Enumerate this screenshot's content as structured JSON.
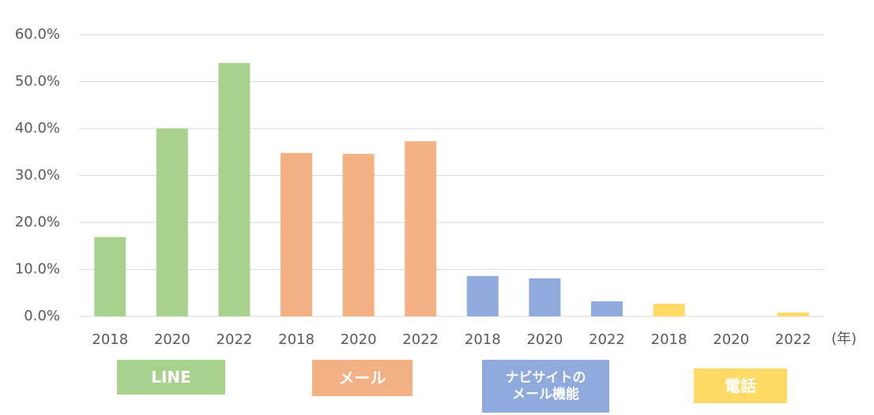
{
  "chart_data": {
    "type": "bar",
    "xlabel": "(年)",
    "ylim": [
      0,
      60
    ],
    "yticks": [
      {
        "value": 0,
        "label": "0.0%"
      },
      {
        "value": 10,
        "label": "10.0%"
      },
      {
        "value": 20,
        "label": "20.0%"
      },
      {
        "value": 30,
        "label": "30.0%"
      },
      {
        "value": 40,
        "label": "40.0%"
      },
      {
        "value": 50,
        "label": "50.0%"
      },
      {
        "value": 60,
        "label": "60.0%"
      }
    ],
    "grid": true,
    "series": [
      {
        "name": "LINE",
        "color": "#a9d18e",
        "categories": [
          "2018",
          "2020",
          "2022"
        ],
        "values": [
          16.9,
          40.0,
          54.0
        ]
      },
      {
        "name": "メール",
        "color": "#f4b183",
        "categories": [
          "2018",
          "2020",
          "2022"
        ],
        "values": [
          34.8,
          34.6,
          37.3
        ]
      },
      {
        "name": "ナビサイトの\nメール機能",
        "color": "#8faadc",
        "categories": [
          "2018",
          "2020",
          "2022"
        ],
        "values": [
          8.6,
          8.1,
          3.2
        ]
      },
      {
        "name": "電話",
        "color": "#ffd966",
        "categories": [
          "2018",
          "2020",
          "2022"
        ],
        "values": [
          2.7,
          0,
          0.8
        ]
      }
    ]
  }
}
